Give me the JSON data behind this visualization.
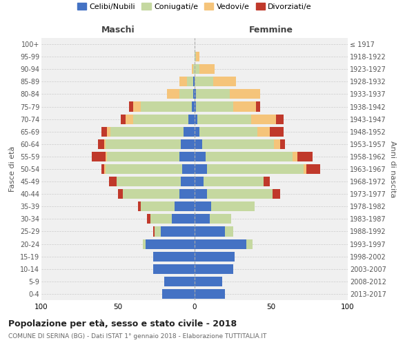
{
  "age_groups": [
    "0-4",
    "5-9",
    "10-14",
    "15-19",
    "20-24",
    "25-29",
    "30-34",
    "35-39",
    "40-44",
    "45-49",
    "50-54",
    "55-59",
    "60-64",
    "65-69",
    "70-74",
    "75-79",
    "80-84",
    "85-89",
    "90-94",
    "95-99",
    "100+"
  ],
  "birth_years": [
    "2013-2017",
    "2008-2012",
    "2003-2007",
    "1998-2002",
    "1993-1997",
    "1988-1992",
    "1983-1987",
    "1978-1982",
    "1973-1977",
    "1968-1972",
    "1963-1967",
    "1958-1962",
    "1953-1957",
    "1948-1952",
    "1943-1947",
    "1938-1942",
    "1933-1937",
    "1928-1932",
    "1923-1927",
    "1918-1922",
    "≤ 1917"
  ],
  "colors": {
    "celibi": "#4472C4",
    "coniugati": "#C5D8A0",
    "vedovi": "#F5C47A",
    "divorziati": "#C0392B"
  },
  "maschi": {
    "celibi": [
      21,
      20,
      27,
      27,
      32,
      22,
      15,
      13,
      10,
      9,
      8,
      10,
      9,
      7,
      4,
      2,
      1,
      1,
      0,
      0,
      0
    ],
    "coniugati": [
      0,
      0,
      0,
      0,
      2,
      4,
      14,
      22,
      37,
      42,
      50,
      47,
      49,
      48,
      36,
      33,
      9,
      4,
      1,
      0,
      0
    ],
    "vedovi": [
      0,
      0,
      0,
      0,
      0,
      0,
      0,
      0,
      0,
      0,
      1,
      1,
      1,
      2,
      5,
      5,
      8,
      5,
      1,
      0,
      0
    ],
    "divorziati": [
      0,
      0,
      0,
      0,
      0,
      1,
      2,
      2,
      3,
      5,
      2,
      9,
      4,
      4,
      3,
      3,
      0,
      0,
      0,
      0,
      0
    ]
  },
  "femmine": {
    "celibi": [
      20,
      18,
      25,
      26,
      34,
      20,
      10,
      11,
      8,
      6,
      8,
      7,
      5,
      3,
      2,
      1,
      1,
      0,
      0,
      0,
      0
    ],
    "coniugati": [
      0,
      0,
      0,
      0,
      4,
      5,
      14,
      28,
      43,
      39,
      63,
      57,
      47,
      38,
      35,
      24,
      22,
      12,
      3,
      1,
      0
    ],
    "vedovi": [
      0,
      0,
      0,
      0,
      0,
      0,
      0,
      0,
      0,
      0,
      2,
      3,
      4,
      8,
      16,
      15,
      20,
      15,
      10,
      2,
      0
    ],
    "divorziati": [
      0,
      0,
      0,
      0,
      0,
      0,
      0,
      0,
      5,
      4,
      9,
      10,
      3,
      9,
      5,
      3,
      0,
      0,
      0,
      0,
      0
    ]
  },
  "xlim": 100,
  "title": "Popolazione per età, sesso e stato civile - 2018",
  "subtitle": "COMUNE DI SERINA (BG) - Dati ISTAT 1° gennaio 2018 - Elaborazione TUTTITALIA.IT",
  "ylabel": "Fasce di età",
  "ylabel2": "Anni di nascita",
  "xlabel_maschi": "Maschi",
  "xlabel_femmine": "Femmine",
  "legend_labels": [
    "Celibi/Nubili",
    "Coniugati/e",
    "Vedovi/e",
    "Divorziati/e"
  ],
  "bg_color": "#f0f0f0"
}
